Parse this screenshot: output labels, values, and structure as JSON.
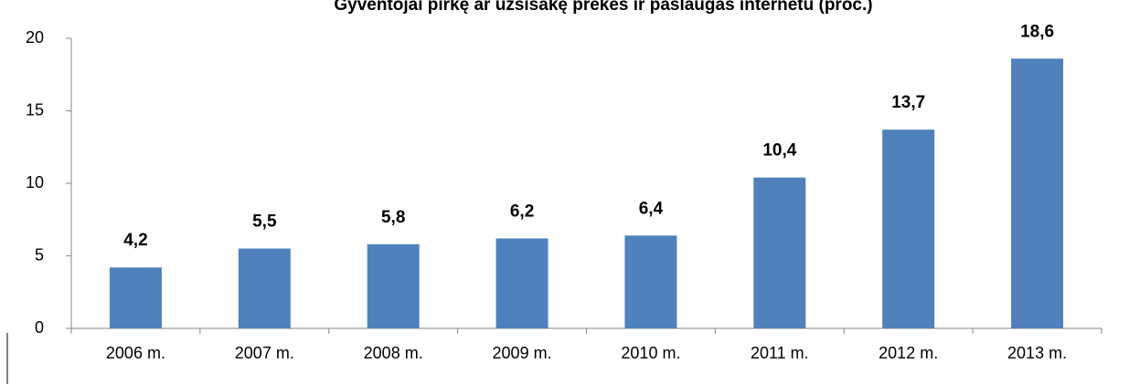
{
  "chart_data": {
    "type": "bar",
    "title": "Gyventojai pirkę ar užsisakę prekes ir paslaugas internetu (proc.)",
    "categories": [
      "2006 m.",
      "2007 m.",
      "2008 m.",
      "2009 m.",
      "2010 m.",
      "2011 m.",
      "2012 m.",
      "2013 m."
    ],
    "values": [
      4.2,
      5.5,
      5.8,
      6.2,
      6.4,
      10.4,
      13.7,
      18.6
    ],
    "value_labels": [
      "4,2",
      "5,5",
      "5,8",
      "6,2",
      "6,4",
      "10,4",
      "13,7",
      "18,6"
    ],
    "color": "#4f81bd",
    "ylim": [
      0,
      20
    ],
    "yticks": [
      0,
      5,
      10,
      15,
      20
    ],
    "grid": false
  }
}
